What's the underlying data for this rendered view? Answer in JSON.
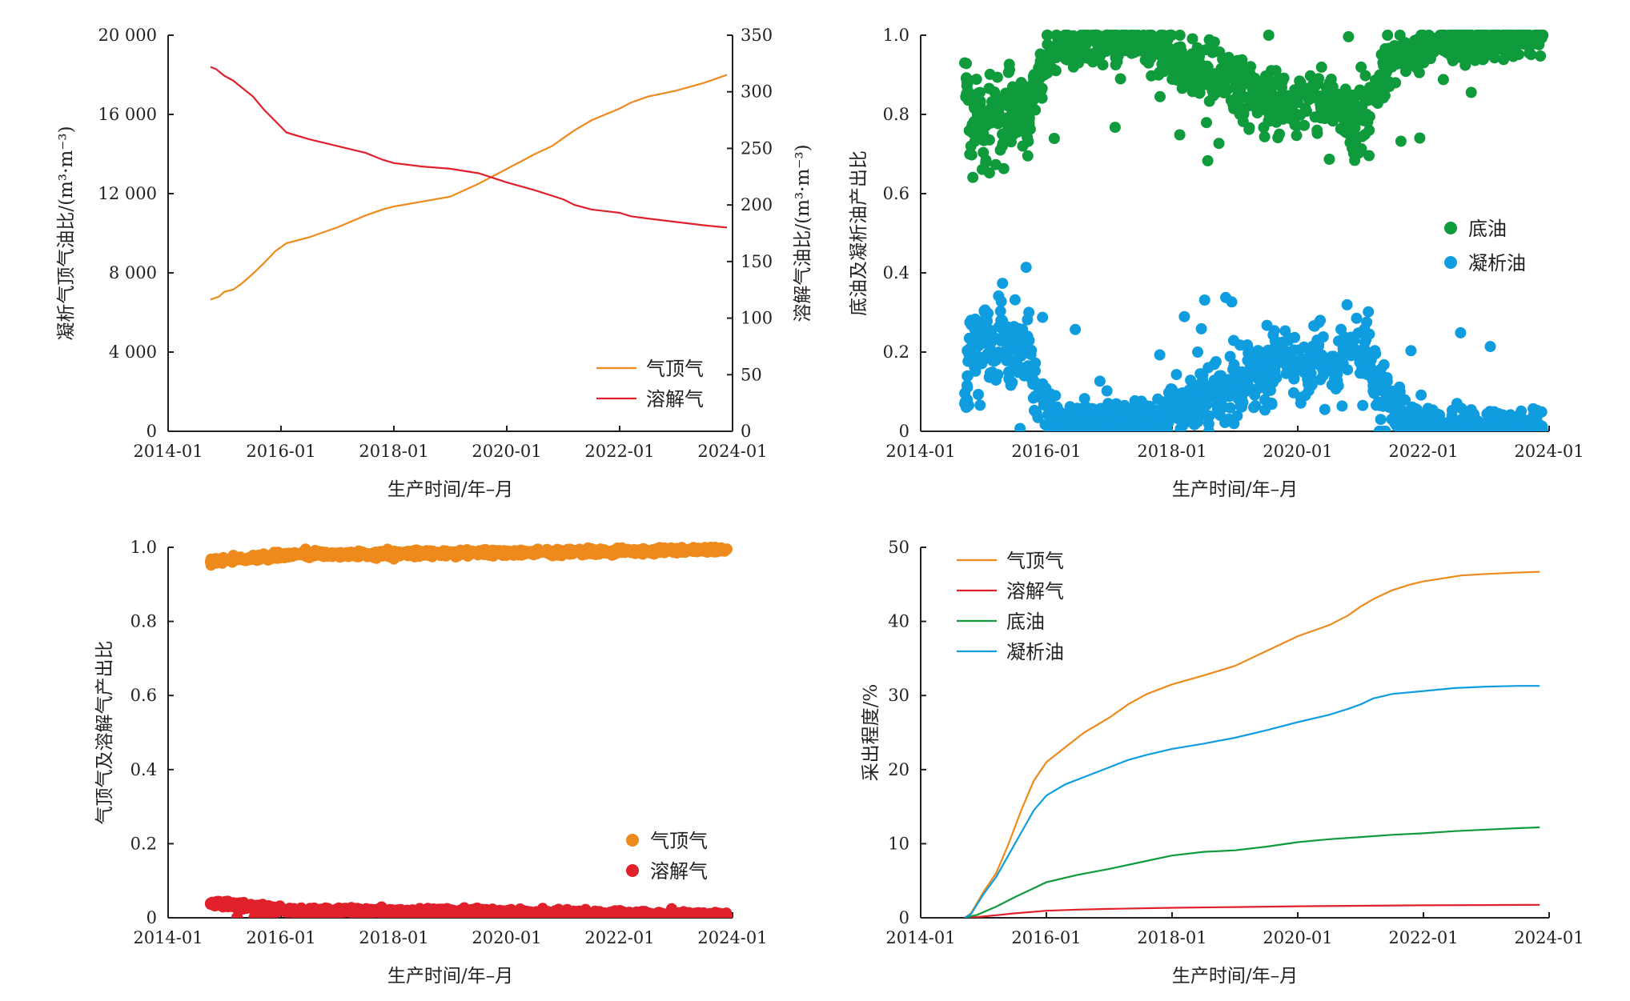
{
  "chart_data": [
    {
      "id": "p1",
      "type": "line",
      "xlabel": "生产时间/年–月",
      "ylabel": "凝析气顶气油比/(m³·m⁻³)",
      "ylabel2": "溶解气油比/(m³·m⁻³)",
      "xlim": [
        2014.0,
        2024.0
      ],
      "ylim": [
        0,
        20000
      ],
      "ylim2": [
        0,
        350
      ],
      "xticks": [
        "2014-01",
        "2016-01",
        "2018-01",
        "2020-01",
        "2022-01",
        "2024-01"
      ],
      "yticks": [
        "0",
        "4 000",
        "8 000",
        "12 000",
        "16 000",
        "20 000"
      ],
      "yticks2": [
        "0",
        "50",
        "100",
        "150",
        "200",
        "250",
        "300",
        "350"
      ],
      "legend": "bottom-right",
      "series": [
        {
          "name": "气顶气",
          "color": "#ee8a1c",
          "axis": "left",
          "x": [
            2014.75,
            2014.9,
            2015.0,
            2015.15,
            2015.3,
            2015.5,
            2015.7,
            2015.9,
            2016.1,
            2016.5,
            2017.0,
            2017.5,
            2017.8,
            2018.0,
            2018.5,
            2019.0,
            2019.5,
            2020.0,
            2020.5,
            2020.8,
            2021.0,
            2021.2,
            2021.5,
            2022.0,
            2022.2,
            2022.5,
            2023.0,
            2023.5,
            2023.9
          ],
          "y": [
            6650,
            6800,
            7050,
            7150,
            7450,
            7950,
            8500,
            9100,
            9500,
            9800,
            10300,
            10900,
            11200,
            11350,
            11600,
            11850,
            12500,
            13250,
            14000,
            14400,
            14800,
            15200,
            15700,
            16300,
            16600,
            16900,
            17200,
            17600,
            18000
          ]
        },
        {
          "name": "溶解气",
          "color": "#e0202b",
          "axis": "right",
          "x": [
            2014.75,
            2014.85,
            2015.0,
            2015.15,
            2015.3,
            2015.5,
            2015.7,
            2015.9,
            2016.1,
            2016.5,
            2017.0,
            2017.5,
            2017.8,
            2018.0,
            2018.5,
            2019.0,
            2019.5,
            2020.0,
            2020.5,
            2021.0,
            2021.2,
            2021.5,
            2022.0,
            2022.2,
            2022.5,
            2023.0,
            2023.5,
            2023.9
          ],
          "y": [
            322,
            320,
            314,
            310,
            304,
            296,
            284,
            274,
            264,
            258,
            252,
            246,
            240,
            237,
            234,
            232,
            228,
            220,
            213,
            205,
            200,
            196,
            193,
            190,
            188,
            185,
            182,
            180
          ]
        }
      ]
    },
    {
      "id": "p2",
      "type": "scatter",
      "xlabel": "生产时间/年–月",
      "ylabel": "底油及凝析油产出比",
      "xlim": [
        2014.0,
        2024.0
      ],
      "ylim": [
        0,
        1.0
      ],
      "xticks": [
        "2014-01",
        "2016-01",
        "2018-01",
        "2020-01",
        "2022-01",
        "2024-01"
      ],
      "yticks": [
        "0",
        "0.2",
        "0.4",
        "0.6",
        "0.8",
        "1.0"
      ],
      "legend": "right",
      "series": [
        {
          "name": "底油",
          "color": "#0f9a3c",
          "x": [
            2014.7,
            2014.75,
            2014.8,
            2014.9,
            2015.0,
            2015.1,
            2015.2,
            2015.3,
            2015.4,
            2015.5,
            2015.6,
            2015.7,
            2015.8,
            2015.9,
            2016.0,
            2016.1,
            2016.3,
            2016.5,
            2016.8,
            2017.0,
            2017.3,
            2017.6,
            2018.0,
            2018.3,
            2018.6,
            2019.0,
            2019.3,
            2019.6,
            2019.8,
            2020.0,
            2020.2,
            2020.4,
            2020.6,
            2020.8,
            2020.9,
            2021.0,
            2021.1,
            2021.3,
            2021.5,
            2021.7,
            2021.9,
            2022.2,
            2022.5,
            2022.8,
            2023.0,
            2023.3,
            2023.5,
            2023.7,
            2023.9
          ],
          "y": [
            0.93,
            0.86,
            0.72,
            0.82,
            0.75,
            0.79,
            0.82,
            0.72,
            0.85,
            0.78,
            0.81,
            0.76,
            0.88,
            0.9,
            0.93,
            0.97,
            0.98,
            0.97,
            0.98,
            0.97,
            0.98,
            0.97,
            0.94,
            0.92,
            0.9,
            0.87,
            0.86,
            0.84,
            0.82,
            0.83,
            0.86,
            0.82,
            0.84,
            0.79,
            0.77,
            0.82,
            0.8,
            0.88,
            0.92,
            0.95,
            0.97,
            0.98,
            0.99,
            0.99,
            0.99,
            1.0,
            1.0,
            0.99,
            1.0
          ]
        },
        {
          "name": "凝析油",
          "color": "#0f9de0",
          "x": [
            2014.7,
            2014.75,
            2014.8,
            2014.9,
            2015.0,
            2015.1,
            2015.2,
            2015.3,
            2015.4,
            2015.5,
            2015.6,
            2015.7,
            2015.8,
            2015.9,
            2016.0,
            2016.1,
            2016.3,
            2016.5,
            2016.8,
            2017.0,
            2017.3,
            2017.6,
            2018.0,
            2018.3,
            2018.6,
            2019.0,
            2019.3,
            2019.6,
            2019.8,
            2020.0,
            2020.2,
            2020.4,
            2020.6,
            2020.8,
            2020.9,
            2021.0,
            2021.1,
            2021.3,
            2021.5,
            2021.7,
            2021.9,
            2022.2,
            2022.5,
            2022.8,
            2023.0,
            2023.3,
            2023.5,
            2023.7,
            2023.9
          ],
          "y": [
            0.07,
            0.14,
            0.28,
            0.18,
            0.25,
            0.21,
            0.18,
            0.28,
            0.15,
            0.22,
            0.19,
            0.24,
            0.12,
            0.1,
            0.07,
            0.03,
            0.02,
            0.03,
            0.02,
            0.03,
            0.02,
            0.03,
            0.06,
            0.08,
            0.1,
            0.13,
            0.14,
            0.16,
            0.18,
            0.17,
            0.14,
            0.18,
            0.16,
            0.21,
            0.23,
            0.18,
            0.2,
            0.12,
            0.08,
            0.05,
            0.03,
            0.02,
            0.01,
            0.01,
            0.01,
            0.0,
            0.0,
            0.01,
            0.0
          ]
        }
      ]
    },
    {
      "id": "p3",
      "type": "scatter",
      "xlabel": "生产时间/年–月",
      "ylabel": "气顶气及溶解气产出比",
      "xlim": [
        2014.0,
        2024.0
      ],
      "ylim": [
        0,
        1.0
      ],
      "xticks": [
        "2014-01",
        "2016-01",
        "2018-01",
        "2020-01",
        "2022-01",
        "2024-01"
      ],
      "yticks": [
        "0",
        "0.2",
        "0.4",
        "0.6",
        "0.8",
        "1.0"
      ],
      "legend": "bottom-right",
      "series": [
        {
          "name": "气顶气",
          "color": "#ee8a1c",
          "x": [
            2014.75,
            2014.9,
            2015.0,
            2015.2,
            2015.4,
            2015.6,
            2015.8,
            2016.0,
            2016.2,
            2016.5,
            2017.0,
            2017.5,
            2018.0,
            2018.5,
            2019.0,
            2019.5,
            2020.0,
            2020.5,
            2021.0,
            2021.5,
            2022.0,
            2022.5,
            2023.0,
            2023.5,
            2023.9
          ],
          "y": [
            0.961,
            0.963,
            0.966,
            0.968,
            0.969,
            0.971,
            0.974,
            0.978,
            0.98,
            0.981,
            0.981,
            0.982,
            0.982,
            0.983,
            0.983,
            0.984,
            0.985,
            0.986,
            0.987,
            0.988,
            0.99,
            0.991,
            0.993,
            0.994,
            0.995
          ]
        },
        {
          "name": "溶解气",
          "color": "#e0202b",
          "x": [
            2014.75,
            2014.9,
            2015.0,
            2015.2,
            2015.4,
            2015.6,
            2015.8,
            2016.0,
            2016.2,
            2016.5,
            2017.0,
            2017.5,
            2018.0,
            2018.5,
            2019.0,
            2019.5,
            2020.0,
            2020.5,
            2021.0,
            2021.5,
            2022.0,
            2022.5,
            2023.0,
            2023.5,
            2023.9
          ],
          "y": [
            0.039,
            0.037,
            0.034,
            0.032,
            0.031,
            0.029,
            0.026,
            0.022,
            0.02,
            0.019,
            0.019,
            0.018,
            0.018,
            0.017,
            0.017,
            0.016,
            0.015,
            0.014,
            0.013,
            0.012,
            0.01,
            0.009,
            0.007,
            0.006,
            0.005
          ]
        }
      ]
    },
    {
      "id": "p4",
      "type": "line",
      "xlabel": "生产时间/年–月",
      "ylabel": "采出程度/%",
      "xlim": [
        2014.0,
        2024.0
      ],
      "ylim": [
        0,
        50
      ],
      "xticks": [
        "2014-01",
        "2016-01",
        "2018-01",
        "2020-01",
        "2022-01",
        "2024-01"
      ],
      "yticks": [
        "0",
        "10",
        "20",
        "30",
        "40",
        "50"
      ],
      "legend": "top-left",
      "series": [
        {
          "name": "气顶气",
          "color": "#ee8a1c",
          "x": [
            2014.7,
            2014.8,
            2015.0,
            2015.2,
            2015.4,
            2015.6,
            2015.8,
            2016.0,
            2016.3,
            2016.6,
            2017.0,
            2017.3,
            2017.6,
            2018.0,
            2018.5,
            2019.0,
            2019.5,
            2020.0,
            2020.5,
            2020.8,
            2021.0,
            2021.2,
            2021.5,
            2021.8,
            2022.0,
            2022.3,
            2022.6,
            2023.0,
            2023.5,
            2023.85
          ],
          "y": [
            0,
            0.6,
            3.5,
            6.0,
            10.0,
            14.5,
            18.5,
            21.0,
            23.0,
            25.0,
            27.0,
            28.8,
            30.2,
            31.5,
            32.7,
            34.0,
            36.0,
            38.0,
            39.5,
            40.8,
            42.0,
            43.0,
            44.2,
            45.0,
            45.4,
            45.8,
            46.2,
            46.4,
            46.6,
            46.7
          ]
        },
        {
          "name": "溶解气",
          "color": "#e0202b",
          "x": [
            2014.7,
            2014.9,
            2015.2,
            2015.5,
            2016.0,
            2016.5,
            2017.0,
            2018.0,
            2019.0,
            2020.0,
            2021.0,
            2022.0,
            2023.0,
            2023.85
          ],
          "y": [
            0,
            0.1,
            0.35,
            0.6,
            0.95,
            1.1,
            1.2,
            1.35,
            1.45,
            1.55,
            1.62,
            1.68,
            1.72,
            1.75
          ]
        },
        {
          "name": "底油",
          "color": "#0f9a3c",
          "x": [
            2014.7,
            2014.9,
            2015.2,
            2015.5,
            2015.8,
            2016.0,
            2016.5,
            2017.0,
            2017.5,
            2018.0,
            2018.5,
            2019.0,
            2019.5,
            2020.0,
            2020.5,
            2021.0,
            2021.5,
            2022.0,
            2022.5,
            2023.0,
            2023.5,
            2023.85
          ],
          "y": [
            0,
            0.4,
            1.5,
            2.8,
            4.0,
            4.8,
            5.8,
            6.6,
            7.5,
            8.4,
            8.9,
            9.1,
            9.6,
            10.2,
            10.6,
            10.9,
            11.2,
            11.4,
            11.7,
            11.9,
            12.1,
            12.2
          ]
        },
        {
          "name": "凝析油",
          "color": "#0f9de0",
          "x": [
            2014.7,
            2014.8,
            2015.0,
            2015.2,
            2015.4,
            2015.6,
            2015.8,
            2016.0,
            2016.3,
            2016.6,
            2017.0,
            2017.3,
            2017.6,
            2018.0,
            2018.5,
            2019.0,
            2019.5,
            2020.0,
            2020.5,
            2020.8,
            2021.0,
            2021.2,
            2021.5,
            2022.0,
            2022.5,
            2023.0,
            2023.5,
            2023.85
          ],
          "y": [
            0,
            0.5,
            3.2,
            5.5,
            8.5,
            11.5,
            14.5,
            16.5,
            18.0,
            19.0,
            20.3,
            21.3,
            22.0,
            22.8,
            23.5,
            24.3,
            25.3,
            26.4,
            27.4,
            28.2,
            28.8,
            29.6,
            30.2,
            30.6,
            31.0,
            31.2,
            31.3,
            31.3
          ]
        }
      ]
    }
  ]
}
